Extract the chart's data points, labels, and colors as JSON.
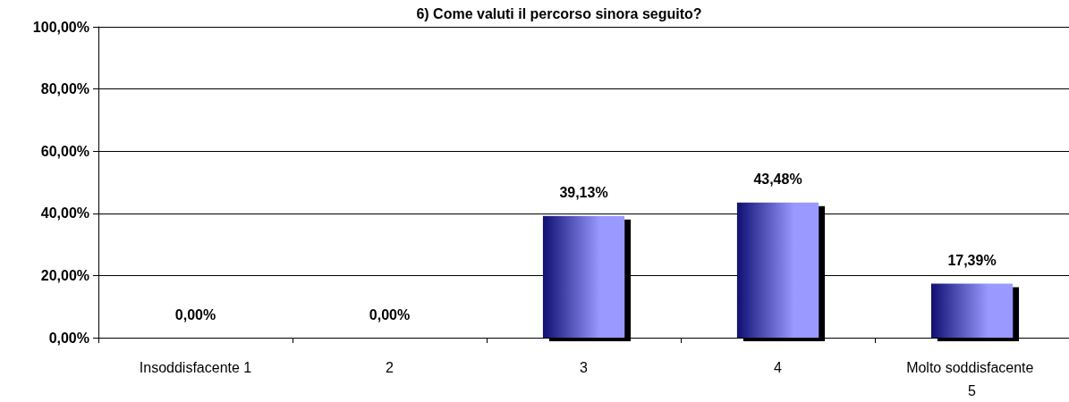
{
  "chart_data": {
    "type": "bar",
    "title": "6) Come valuti il percorso sinora seguito?",
    "categories": [
      "Insoddisfacente 1",
      "2",
      "3",
      "4",
      "Molto soddisfacente 5"
    ],
    "values": [
      0,
      0,
      39.13,
      43.48,
      17.39
    ],
    "value_labels": [
      "0,00%",
      "0,00%",
      "39,13%",
      "43,48%",
      "17,39%"
    ],
    "color": "#9999ff",
    "ylim": [
      0,
      100
    ],
    "yticks": [
      {
        "value": 0,
        "label": "0,00%"
      },
      {
        "value": 20,
        "label": "20,00%"
      },
      {
        "value": 40,
        "label": "40,00%"
      },
      {
        "value": 60,
        "label": "60,00%"
      },
      {
        "value": 80,
        "label": "80,00%"
      },
      {
        "value": 100,
        "label": "100,00%"
      }
    ],
    "grid": "y"
  }
}
